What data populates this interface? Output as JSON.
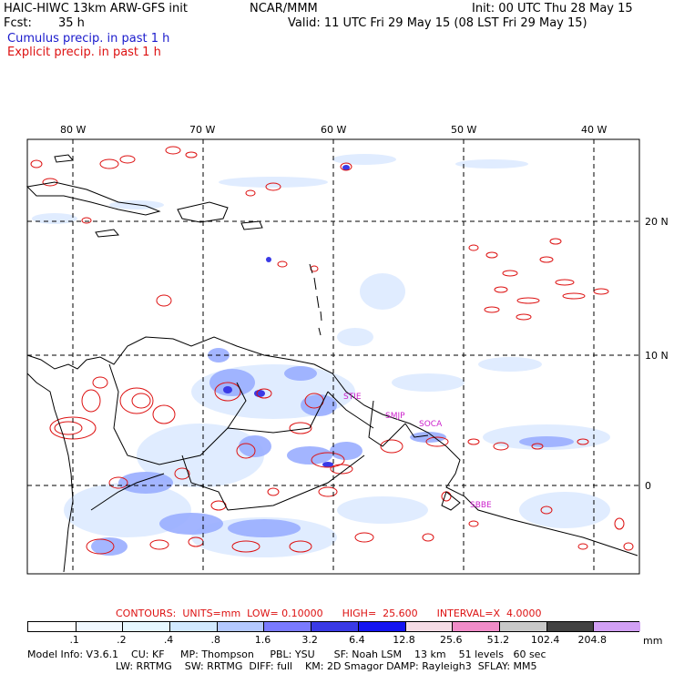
{
  "header": {
    "model_title": "HAIC-HIWC 13km ARW-GFS init",
    "org": "NCAR/MMM",
    "init": "Init: 00 UTC Thu 28 May 15",
    "fcst_label": "Fcst:",
    "fcst_value": "35 h",
    "valid": "Valid: 11 UTC Fri 29 May 15 (08 LST Fri 29 May 15)",
    "field1": "Cumulus precip. in past 1 h",
    "field2": "Explicit precip. in past 1 h"
  },
  "map": {
    "lon_labels": [
      "80 W",
      "70 W",
      "60 W",
      "50 W",
      "40 W"
    ],
    "lat_labels": [
      "20 N",
      "10 N",
      "0"
    ],
    "station_labels": [
      "STIE",
      "SMJP",
      "SOCA",
      "SBBE"
    ],
    "colors": {
      "coastline": "#000000",
      "grid": "#000000",
      "explicit_contour": "#dd1111",
      "cumulus_light": "#d6e8ff",
      "cumulus_mid": "#8fa4ff",
      "cumulus_heavy": "#3a3ae6",
      "station_label": "#cc22cc"
    }
  },
  "contours": {
    "line": "CONTOURS:  UNITS=mm  LOW= 0.10000      HIGH=  25.600      INTERVAL=X  4.0000"
  },
  "colorbar": {
    "labels": [
      ".1",
      ".2",
      ".4",
      ".8",
      "1.6",
      "3.2",
      "6.4",
      "12.8",
      "25.6",
      "51.2",
      "102.4",
      "204.8"
    ],
    "unit": "mm",
    "colors": [
      "#ffffff",
      "#ffffff",
      "#f0f8ff",
      "#e6f7ff",
      "#d2e9ff",
      "#b4c8ff",
      "#7a7aff",
      "#3a3ae6",
      "#1414f0",
      "#f5dce6",
      "#f08cc8",
      "#c8c8c8",
      "#424242",
      "#d2a0f5"
    ]
  },
  "footer": {
    "line1": "Model Info: V3.6.1    CU: KF     MP: Thompson     PBL: YSU      SF: Noah LSM    13 km    51 levels   60 sec",
    "line2": "LW: RRTMG    SW: RRTMG  DIFF: full    KM: 2D Smagor DAMP: Rayleigh3  SFLAY: MM5"
  }
}
